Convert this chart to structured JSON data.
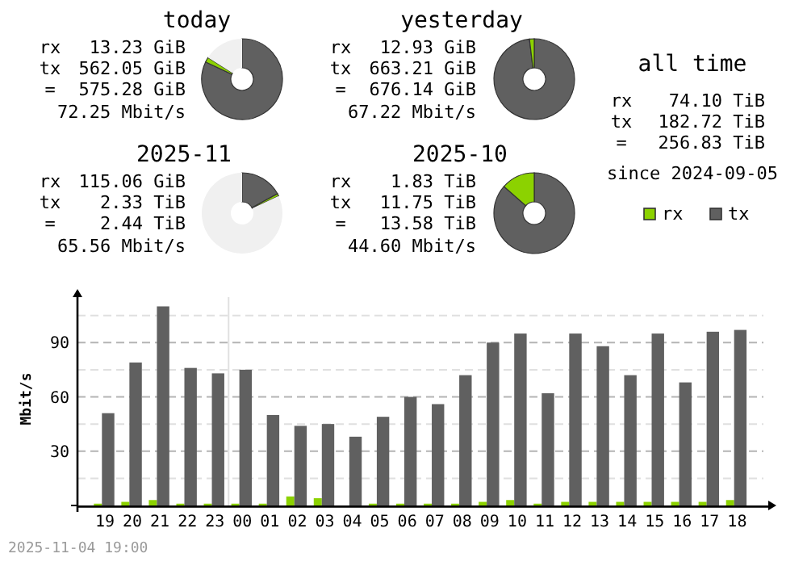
{
  "chart_data": [
    {
      "type": "donut",
      "title": "today",
      "categories": [
        null,
        null,
        null
      ],
      "values": [
        82,
        2,
        16
      ],
      "colors": [
        "#606060",
        "#8cd200",
        "#f0f0f0"
      ],
      "annotations": [
        "rx",
        "13.23 GiB",
        "tx",
        "562.05 GiB",
        "=",
        "575.28 GiB",
        "72.25 Mbit/s"
      ]
    },
    {
      "type": "donut",
      "title": "yesterday",
      "categories": [
        null,
        null
      ],
      "values": [
        98.1,
        1.9
      ],
      "colors": [
        "#606060",
        "#8cd200"
      ],
      "annotations": [
        "rx",
        "12.93 GiB",
        "tx",
        "663.21 GiB",
        "=",
        "676.14 GiB",
        "67.22 Mbit/s"
      ]
    },
    {
      "type": "donut",
      "title": "2025-11",
      "categories": [
        null,
        null,
        null
      ],
      "values": [
        17,
        1,
        82
      ],
      "colors": [
        "#606060",
        "#8cd200",
        "#f0f0f0"
      ],
      "annotations": [
        "rx",
        "115.06 GiB",
        "tx",
        "2.33 TiB",
        "=",
        "2.44 TiB",
        "65.56 Mbit/s"
      ]
    },
    {
      "type": "donut",
      "title": "2025-10",
      "categories": [
        null,
        null
      ],
      "values": [
        86.5,
        13.5
      ],
      "colors": [
        "#606060",
        "#8cd200"
      ],
      "annotations": [
        "rx",
        "1.83 TiB",
        "tx",
        "11.75 TiB",
        "=",
        "13.58 TiB",
        "44.60 Mbit/s"
      ]
    },
    {
      "type": "other",
      "title": "all time",
      "annotations": [
        "rx",
        "74.10 TiB",
        "tx",
        "182.72 TiB",
        "=",
        "256.83 TiB",
        "since 2024-09-05"
      ]
    },
    {
      "type": "bar",
      "categories": [
        "19",
        "20",
        "21",
        "22",
        "23",
        "00",
        "01",
        "02",
        "03",
        "04",
        "05",
        "06",
        "07",
        "08",
        "09",
        "10",
        "11",
        "12",
        "13",
        "14",
        "15",
        "16",
        "17",
        "18"
      ],
      "series": [
        {
          "name": "rx",
          "color": "#8cd200",
          "values": [
            1,
            2,
            3,
            1,
            1,
            1,
            1,
            5,
            4,
            0,
            1,
            1,
            1,
            1,
            2,
            3,
            1,
            2,
            2,
            2,
            2,
            2,
            2,
            3
          ]
        },
        {
          "name": "tx",
          "color": "#606060",
          "values": [
            51,
            79,
            110,
            76,
            73,
            75,
            50,
            44,
            45,
            38,
            49,
            60,
            56,
            72,
            90,
            95,
            62,
            95,
            88,
            72,
            95,
            68,
            96,
            97
          ]
        }
      ],
      "ylabel": "Mbit/s",
      "ylim": [
        0,
        116
      ],
      "yticks": [
        {
          "value": 15,
          "label": null
        },
        30,
        {
          "value": 45,
          "label": null
        },
        60,
        {
          "value": 75,
          "label": null
        },
        90,
        {
          "value": 105,
          "label": null
        }
      ],
      "grid": "y",
      "legend": "top right",
      "ref_lines": [
        {
          "axis": "x",
          "value": "00",
          "color": "#e0e0e0"
        }
      ],
      "annotations": [
        "2025-11-04 19:00"
      ]
    }
  ]
}
